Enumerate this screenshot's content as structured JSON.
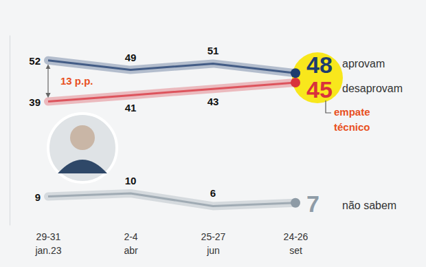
{
  "chart_data": {
    "type": "line",
    "categories": [
      "29-31\njan.23",
      "2-4\nabr",
      "25-27\njun",
      "24-26\nset"
    ],
    "series": [
      {
        "name": "aprovam",
        "color": "#1d3c6e",
        "values": [
          52,
          49,
          51,
          48
        ]
      },
      {
        "name": "desaprovam",
        "color": "#d8323c",
        "values": [
          39,
          41,
          43,
          45
        ]
      },
      {
        "name": "não sabem",
        "color": "#8e9ba6",
        "values": [
          9,
          10,
          6,
          7
        ]
      }
    ],
    "ylim": [
      0,
      60
    ],
    "yticks": [],
    "data_labels": true,
    "tick_labels": "x",
    "annotations": [
      {
        "text": "13 p.p."
      },
      {
        "text": "empate\ntécnico"
      }
    ]
  }
}
